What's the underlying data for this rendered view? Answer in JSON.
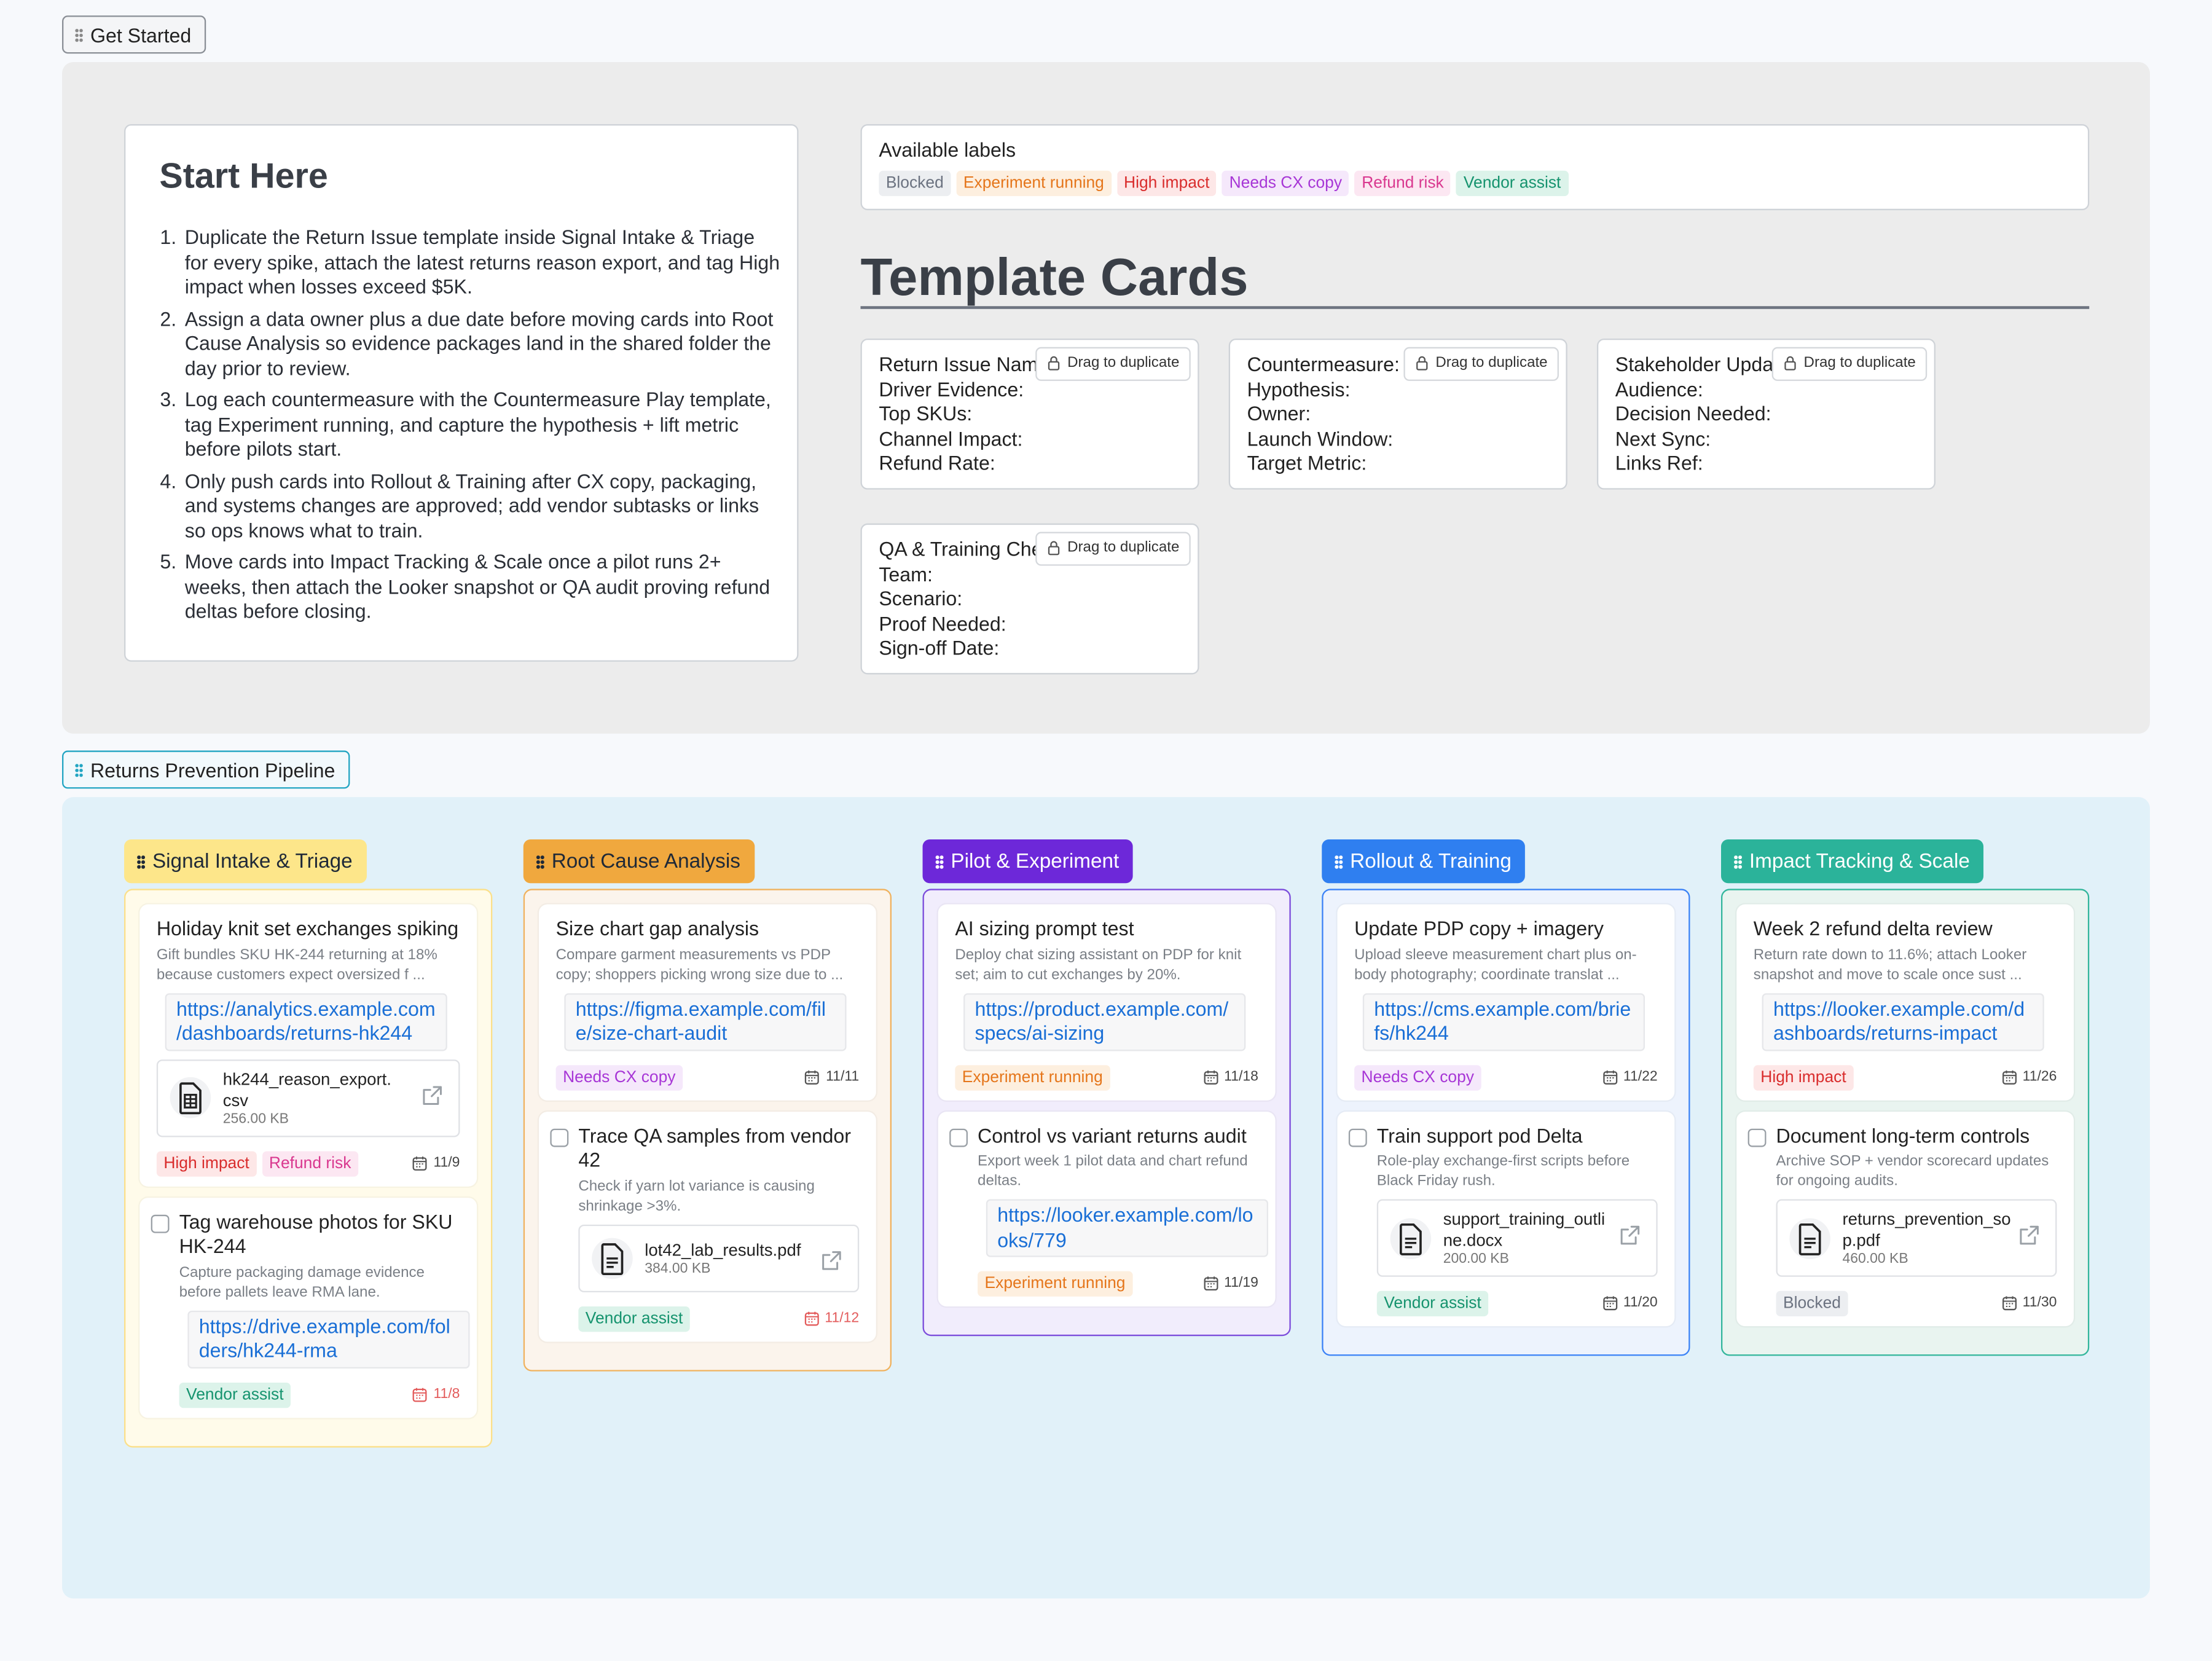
{
  "get_started": {
    "tag": "Get Started",
    "start_here": {
      "title": "Start Here",
      "steps": [
        "Duplicate the Return Issue template inside Signal Intake & Triage for every spike, attach the latest returns reason export, and tag High impact when losses exceed $5K.",
        "Assign a data owner plus a due date before moving cards into Root Cause Analysis so evidence packages land in the shared folder the day prior to review.",
        "Log each countermeasure with the Countermeasure Play template, tag Experiment running, and capture the hypothesis + lift metric before pilots start.",
        "Only push cards into Rollout & Training after CX copy, packaging, and systems changes are approved; add vendor subtasks or links so ops knows what to train.",
        "Move cards into Impact Tracking & Scale once a pilot runs 2+ weeks, then attach the Looker snapshot or QA audit proving refund deltas before closing."
      ]
    },
    "labels": {
      "title": "Available labels",
      "items": [
        {
          "name": "Blocked",
          "color": "#6b7280",
          "bg": "#eceef1"
        },
        {
          "name": "Experiment running",
          "color": "#e5761b",
          "bg": "#fdefdf"
        },
        {
          "name": "High impact",
          "color": "#d92d2d",
          "bg": "#fde7e7"
        },
        {
          "name": "Needs CX copy",
          "color": "#a736d6",
          "bg": "#f5e8fb"
        },
        {
          "name": "Refund risk",
          "color": "#d9388f",
          "bg": "#fce7f2"
        },
        {
          "name": "Vendor assist",
          "color": "#15936e",
          "bg": "#dcf3ea"
        }
      ]
    },
    "templates": {
      "title": "Template Cards",
      "drag_label": "Drag to duplicate",
      "cards": [
        {
          "title": "Return Issue Name:",
          "fields": [
            "Driver Evidence:",
            "Top SKUs:",
            "Channel Impact:",
            "Refund Rate:"
          ]
        },
        {
          "title": "Countermeasure:",
          "fields": [
            "Hypothesis:",
            "Owner:",
            "Launch Window:",
            "Target Metric:"
          ]
        },
        {
          "title": "Stakeholder Update:",
          "fields": [
            "Audience:",
            "Decision Needed:",
            "Next Sync:",
            "Links Ref:"
          ]
        },
        {
          "title": "QA & Training Check:",
          "fields": [
            "Team:",
            "Scenario:",
            "Proof Needed:",
            "Sign-off Date:"
          ]
        }
      ]
    }
  },
  "pipeline": {
    "tag": "Returns Prevention Pipeline",
    "columns": [
      {
        "name": "Signal Intake & Triage",
        "header_bg": "#fde68a",
        "header_color": "#1f2937",
        "border": "#fbe08a",
        "bg": "#fffbea",
        "cards": [
          {
            "checkbox": false,
            "title": "Holiday knit set exchanges spiking",
            "description": "Gift bundles SKU HK-244 returning at 18% because customers expect oversized f ...",
            "link": "https://analytics.example.com/dashboards/returns-hk244",
            "file": {
              "name": "hk244_reason_export.csv",
              "size": "256.00 KB",
              "kind": "sheet"
            },
            "labels": [
              "High impact",
              "Refund risk"
            ],
            "date": "11/9",
            "overdue": false
          },
          {
            "checkbox": true,
            "title": "Tag warehouse photos for SKU HK-244",
            "description": "Capture packaging damage evidence before pallets leave RMA lane.",
            "link": "https://drive.example.com/folders/hk244-rma",
            "labels": [
              "Vendor assist"
            ],
            "date": "11/8",
            "overdue": true
          }
        ]
      },
      {
        "name": "Root Cause Analysis",
        "header_bg": "#f0a83e",
        "header_color": "#1f2937",
        "border": "#f0b25f",
        "bg": "#fbf4ec",
        "cards": [
          {
            "checkbox": false,
            "title": "Size chart gap analysis",
            "description": "Compare garment measurements vs PDP copy; shoppers picking wrong size due to ...",
            "link": "https://figma.example.com/file/size-chart-audit",
            "labels": [
              "Needs CX copy"
            ],
            "date": "11/11",
            "overdue": false
          },
          {
            "checkbox": true,
            "title": "Trace QA samples from vendor 42",
            "description": "Check if yarn lot variance is causing shrinkage >3%.",
            "file": {
              "name": "lot42_lab_results.pdf",
              "size": "384.00 KB",
              "kind": "doc"
            },
            "labels": [
              "Vendor assist"
            ],
            "date": "11/12",
            "overdue": true
          }
        ]
      },
      {
        "name": "Pilot & Experiment",
        "header_bg": "#6d28d9",
        "header_color": "#ffffff",
        "border": "#7c4ddb",
        "bg": "#f1edfc",
        "cards": [
          {
            "checkbox": false,
            "title": "AI sizing prompt test",
            "description": "Deploy chat sizing assistant on PDP for knit set; aim to cut exchanges by 20%.",
            "link": "https://product.example.com/specs/ai-sizing",
            "labels": [
              "Experiment running"
            ],
            "date": "11/18",
            "overdue": false
          },
          {
            "checkbox": true,
            "title": "Control vs variant returns audit",
            "description": "Export week 1 pilot data and chart refund deltas.",
            "link": "https://looker.example.com/looks/779",
            "labels": [
              "Experiment running"
            ],
            "date": "11/19",
            "overdue": false
          }
        ]
      },
      {
        "name": "Rollout & Training",
        "header_bg": "#2f7ff0",
        "header_color": "#ffffff",
        "border": "#3b82f6",
        "bg": "#edf3fd",
        "cards": [
          {
            "checkbox": false,
            "title": "Update PDP copy + imagery",
            "description": "Upload sleeve measurement chart plus on-body photography; coordinate translat ...",
            "link": "https://cms.example.com/briefs/hk244",
            "labels": [
              "Needs CX copy"
            ],
            "date": "11/22",
            "overdue": false
          },
          {
            "checkbox": true,
            "title": "Train support pod Delta",
            "description": "Role-play exchange-first scripts before Black Friday rush.",
            "file": {
              "name": "support_training_outline.docx",
              "size": "200.00 KB",
              "kind": "doc"
            },
            "labels": [
              "Vendor assist"
            ],
            "date": "11/20",
            "overdue": false
          }
        ]
      },
      {
        "name": "Impact Tracking & Scale",
        "header_bg": "#2bb39a",
        "header_color": "#ffffff",
        "border": "#33b69c",
        "bg": "#e9f4f0",
        "cards": [
          {
            "checkbox": false,
            "title": "Week 2 refund delta review",
            "description": "Return rate down to 11.6%; attach Looker snapshot and move to scale once sust ...",
            "link": "https://looker.example.com/dashboards/returns-impact",
            "labels": [
              "High impact"
            ],
            "date": "11/26",
            "overdue": false
          },
          {
            "checkbox": true,
            "title": "Document long-term controls",
            "description": "Archive SOP + vendor scorecard updates for ongoing audits.",
            "file": {
              "name": "returns_prevention_sop.pdf",
              "size": "460.00 KB",
              "kind": "doc"
            },
            "labels": [
              "Blocked"
            ],
            "date": "11/30",
            "overdue": false
          }
        ]
      }
    ]
  }
}
